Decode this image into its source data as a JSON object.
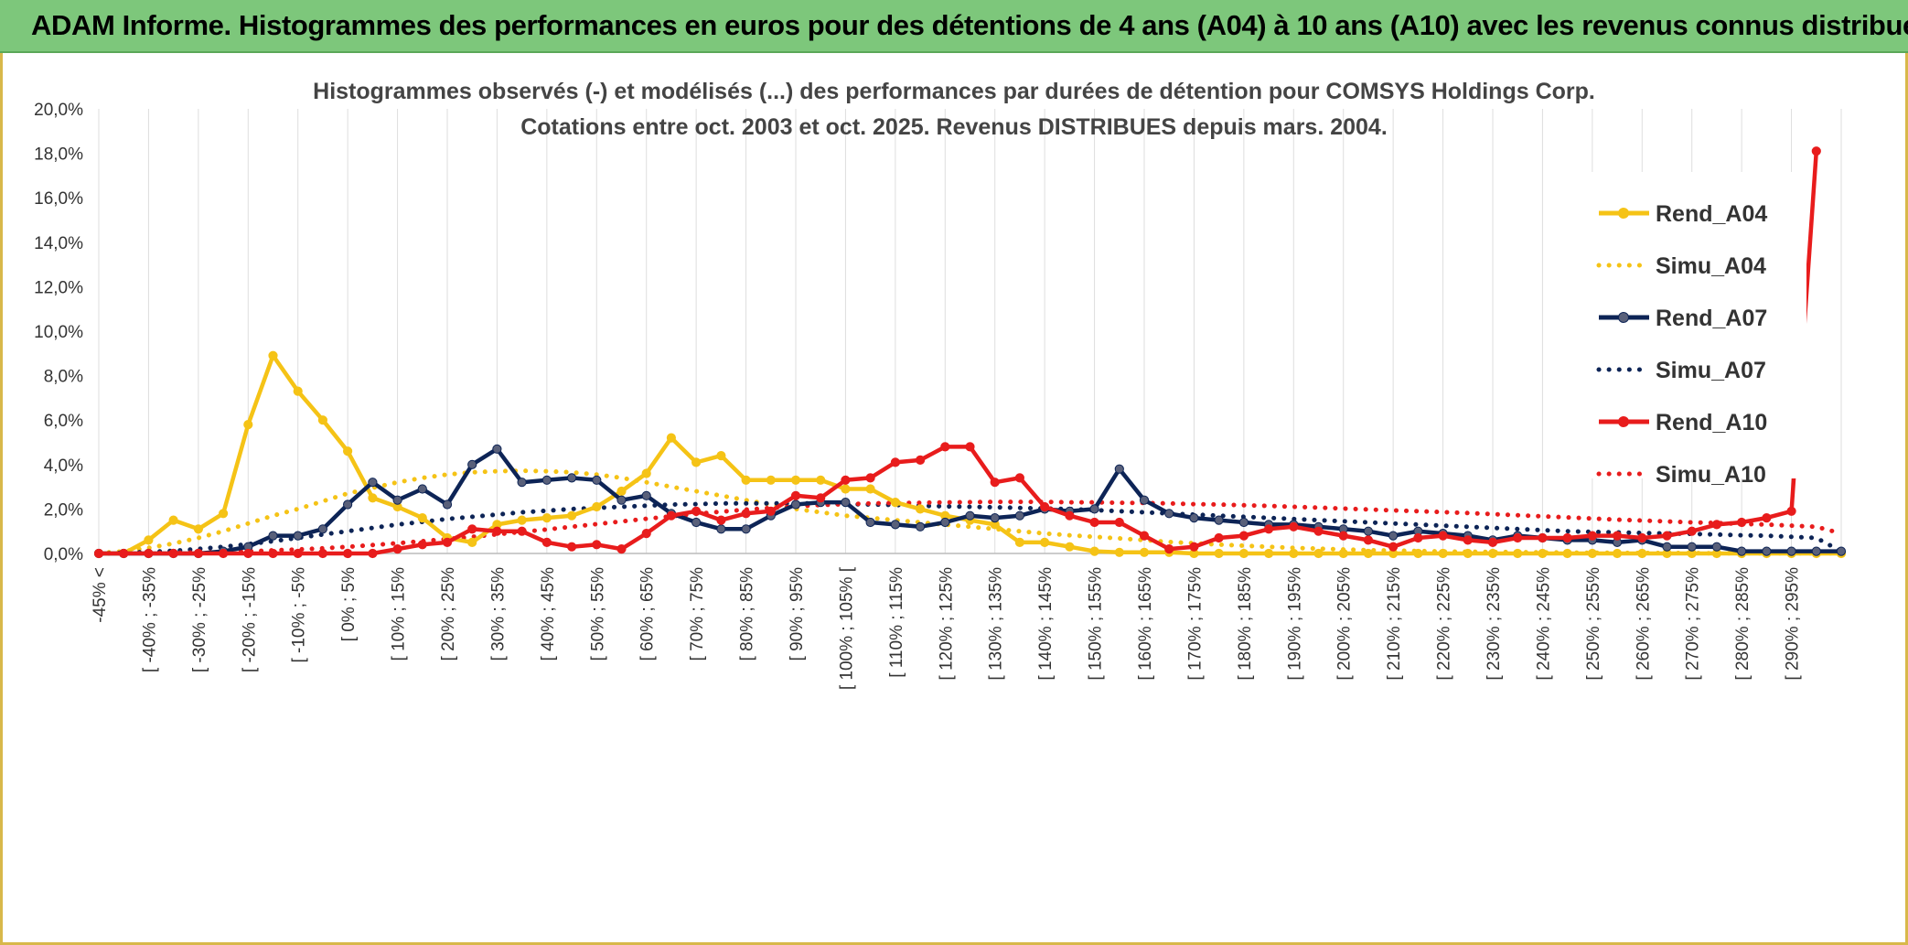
{
  "header": {
    "title": "ADAM Informe. Histogrammes des performances en euros pour des détentions de 4 ans (A04) à 10 ans (A10) avec les revenus connus distribués"
  },
  "chart_data": {
    "type": "line",
    "title_line1": "Histogrammes observés (-) et modélisés (...) des performances par durées de détention pour COMSYS Holdings Corp.",
    "title_line2": "Cotations entre oct. 2003 et oct. 2025. Revenus DISTRIBUES depuis mars. 2004.",
    "ylim": [
      0,
      20
    ],
    "y_ticks": [
      "0,0%",
      "2,0%",
      "4,0%",
      "6,0%",
      "8,0%",
      "10,0%",
      "12,0%",
      "14,0%",
      "16,0%",
      "18,0%",
      "20,0%"
    ],
    "x_labels": [
      "-45% <",
      "[ -40% ; -35%",
      "[ -30% ; -25%",
      "[ -20% ; -15%",
      "[ -10% ; -5%",
      "[ 0% ; 5%",
      "[ 10% ; 15%",
      "[ 20% ; 25%",
      "[ 30% ; 35%",
      "[ 40% ; 45%",
      "[ 50% ; 55%",
      "[ 60% ; 65%",
      "[ 70% ; 75%",
      "[ 80% ; 85%",
      "[ 90% ; 95%",
      "[ 100% ; 105% [",
      "[ 110% ; 115%",
      "[ 120% ; 125%",
      "[ 130% ; 135%",
      "[ 140% ; 145%",
      "[ 150% ; 155%",
      "[ 160% ; 165%",
      "[ 170% ; 175%",
      "[ 180% ; 185%",
      "[ 190% ; 195%",
      "[ 200% ; 205%",
      "[ 210% ; 215%",
      "[ 220% ; 225%",
      "[ 230% ; 235%",
      "[ 240% ; 245%",
      "[ 250% ; 255%",
      "[ 260% ; 265%",
      "[ 270% ; 275%",
      "[ 280% ; 285%",
      "[ 290% ; 295%"
    ],
    "legend_position": "right",
    "grid": "vertical",
    "series": [
      {
        "name": "Rend_A04",
        "style": "solid",
        "color": "#f5c316",
        "values": [
          0,
          0,
          0.6,
          1.5,
          1.1,
          1.8,
          5.8,
          8.9,
          7.3,
          6.0,
          4.6,
          2.5,
          2.1,
          1.6,
          0.7,
          0.5,
          1.3,
          1.5,
          1.6,
          1.7,
          2.1,
          2.8,
          3.6,
          5.2,
          4.1,
          4.4,
          3.3,
          3.3,
          3.3,
          3.3,
          2.9,
          2.9,
          2.3,
          2.0,
          1.7,
          1.5,
          1.3,
          0.5,
          0.5,
          0.3,
          0.1,
          0.05,
          0.05,
          0.05,
          0,
          0,
          0,
          0,
          0,
          0,
          0,
          0,
          0,
          0,
          0,
          0,
          0,
          0,
          0,
          0,
          0,
          0,
          0,
          0,
          0,
          0,
          0,
          0,
          0,
          0,
          0
        ]
      },
      {
        "name": "Simu_A04",
        "style": "dotted",
        "color": "#f5c316",
        "values": [
          0.02,
          0.1,
          0.25,
          0.45,
          0.7,
          1.0,
          1.35,
          1.7,
          2.0,
          2.35,
          2.7,
          2.95,
          3.2,
          3.4,
          3.55,
          3.65,
          3.7,
          3.72,
          3.7,
          3.65,
          3.55,
          3.4,
          3.2,
          3.0,
          2.8,
          2.6,
          2.4,
          2.2,
          2.0,
          1.85,
          1.7,
          1.6,
          1.5,
          1.4,
          1.3,
          1.2,
          1.1,
          1.0,
          0.9,
          0.82,
          0.75,
          0.68,
          0.6,
          0.52,
          0.46,
          0.4,
          0.35,
          0.3,
          0.25,
          0.22,
          0.18,
          0.15,
          0.13,
          0.11,
          0.09,
          0.08,
          0.07,
          0.06,
          0.05,
          0.04,
          0.03,
          0.03,
          0.02,
          0.02,
          0.02,
          0.01,
          0.01,
          0.01,
          0.01,
          0.01,
          0.01
        ]
      },
      {
        "name": "Rend_A07",
        "style": "solid",
        "color": "#0d2456",
        "values": [
          0,
          0,
          0,
          0,
          0,
          0.1,
          0.3,
          0.8,
          0.8,
          1.1,
          2.2,
          3.2,
          2.4,
          2.9,
          2.2,
          4.0,
          4.7,
          3.2,
          3.3,
          3.4,
          3.3,
          2.4,
          2.6,
          1.8,
          1.4,
          1.1,
          1.1,
          1.7,
          2.2,
          2.3,
          2.3,
          1.4,
          1.3,
          1.2,
          1.4,
          1.7,
          1.6,
          1.7,
          2.0,
          1.9,
          2.0,
          3.8,
          2.4,
          1.8,
          1.6,
          1.5,
          1.4,
          1.3,
          1.3,
          1.2,
          1.1,
          1.0,
          0.8,
          1.0,
          0.9,
          0.8,
          0.6,
          0.8,
          0.7,
          0.6,
          0.6,
          0.5,
          0.6,
          0.3,
          0.3,
          0.3,
          0.1,
          0.1,
          0.1,
          0.1,
          0.1
        ]
      },
      {
        "name": "Simu_A07",
        "style": "dotted",
        "color": "#0d2456",
        "values": [
          0,
          0.03,
          0.07,
          0.12,
          0.2,
          0.3,
          0.42,
          0.55,
          0.7,
          0.85,
          1.0,
          1.15,
          1.3,
          1.42,
          1.55,
          1.65,
          1.75,
          1.85,
          1.92,
          2.0,
          2.05,
          2.1,
          2.15,
          2.2,
          2.22,
          2.25,
          2.25,
          2.25,
          2.25,
          2.25,
          2.22,
          2.2,
          2.18,
          2.15,
          2.12,
          2.1,
          2.08,
          2.05,
          2.02,
          2.0,
          1.95,
          1.9,
          1.85,
          1.8,
          1.75,
          1.7,
          1.65,
          1.6,
          1.55,
          1.5,
          1.45,
          1.4,
          1.35,
          1.3,
          1.25,
          1.2,
          1.15,
          1.1,
          1.05,
          1.0,
          0.97,
          0.95,
          0.92,
          0.9,
          0.88,
          0.85,
          0.82,
          0.8,
          0.75,
          0.7,
          0.1
        ]
      },
      {
        "name": "Rend_A10",
        "style": "solid",
        "color": "#e81c1c",
        "values": [
          0,
          0,
          0,
          0,
          0,
          0,
          0,
          0,
          0,
          0,
          0,
          0,
          0.2,
          0.4,
          0.5,
          1.1,
          1.0,
          1.0,
          0.5,
          0.3,
          0.4,
          0.2,
          0.9,
          1.7,
          1.9,
          1.5,
          1.8,
          1.9,
          2.6,
          2.5,
          3.3,
          3.4,
          4.1,
          4.2,
          4.8,
          4.8,
          3.2,
          3.4,
          2.1,
          1.7,
          1.4,
          1.4,
          0.8,
          0.2,
          0.3,
          0.7,
          0.8,
          1.1,
          1.2,
          1.0,
          0.8,
          0.6,
          0.3,
          0.7,
          0.8,
          0.6,
          0.5,
          0.7,
          0.7,
          0.7,
          0.8,
          0.8,
          0.7,
          0.8,
          1.0,
          1.3,
          1.4,
          1.6,
          1.9,
          18.1
        ]
      },
      {
        "name": "Simu_A10",
        "style": "dotted",
        "color": "#e81c1c",
        "values": [
          0,
          0.01,
          0.02,
          0.03,
          0.05,
          0.07,
          0.1,
          0.14,
          0.18,
          0.23,
          0.3,
          0.38,
          0.46,
          0.55,
          0.65,
          0.75,
          0.86,
          0.97,
          1.08,
          1.2,
          1.32,
          1.44,
          1.56,
          1.67,
          1.78,
          1.88,
          1.97,
          2.05,
          2.12,
          2.18,
          2.22,
          2.25,
          2.27,
          2.28,
          2.3,
          2.31,
          2.32,
          2.32,
          2.32,
          2.3,
          2.3,
          2.28,
          2.27,
          2.25,
          2.22,
          2.2,
          2.17,
          2.14,
          2.1,
          2.06,
          2.02,
          1.98,
          1.94,
          1.9,
          1.86,
          1.82,
          1.77,
          1.72,
          1.67,
          1.62,
          1.57,
          1.52,
          1.48,
          1.44,
          1.4,
          1.37,
          1.33,
          1.3,
          1.25,
          1.2,
          0.9
        ]
      }
    ]
  }
}
